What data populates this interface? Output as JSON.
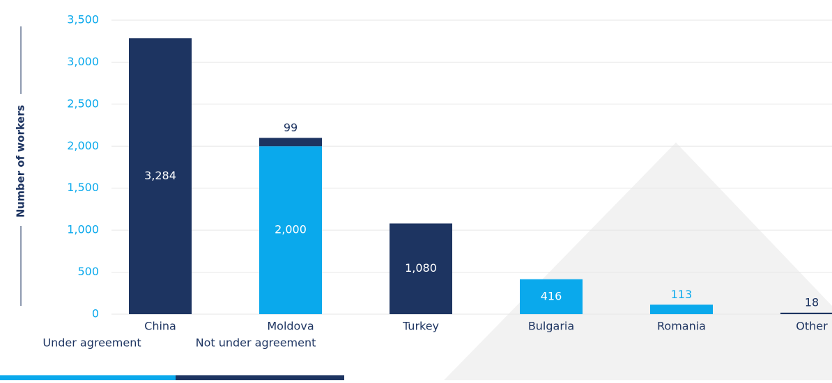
{
  "chart_data": {
    "type": "stacked_bar",
    "y_label": "Number of workers",
    "categories": [
      "China",
      "Moldova",
      "Turkey",
      "Bulgaria",
      "Romania",
      "Other"
    ],
    "series": [
      {
        "name": "Under agreement",
        "color": "#0aa9ec",
        "values": [
          null,
          2000,
          null,
          416,
          113,
          null
        ]
      },
      {
        "name": "Not under agreement",
        "color": "#1d3461",
        "values": [
          3284,
          99,
          1080,
          null,
          null,
          18
        ]
      }
    ],
    "value_labels": [
      [
        null,
        "2,000",
        null,
        "416",
        "113",
        null
      ],
      [
        "3,284",
        "99",
        "1,080",
        null,
        null,
        "18"
      ]
    ],
    "ylim": [
      0,
      3500
    ],
    "yticks": [
      0,
      500,
      {
        "value": 1000,
        "label": "1,000"
      },
      {
        "value": 1500,
        "label": "1,500"
      },
      {
        "value": 2000,
        "label": "2,000"
      },
      {
        "value": 2500,
        "label": "2,500"
      },
      {
        "value": 3000,
        "label": "3,000"
      },
      {
        "value": 3500,
        "label": "3,500"
      }
    ],
    "grid": true,
    "legend": "bottom-left"
  }
}
